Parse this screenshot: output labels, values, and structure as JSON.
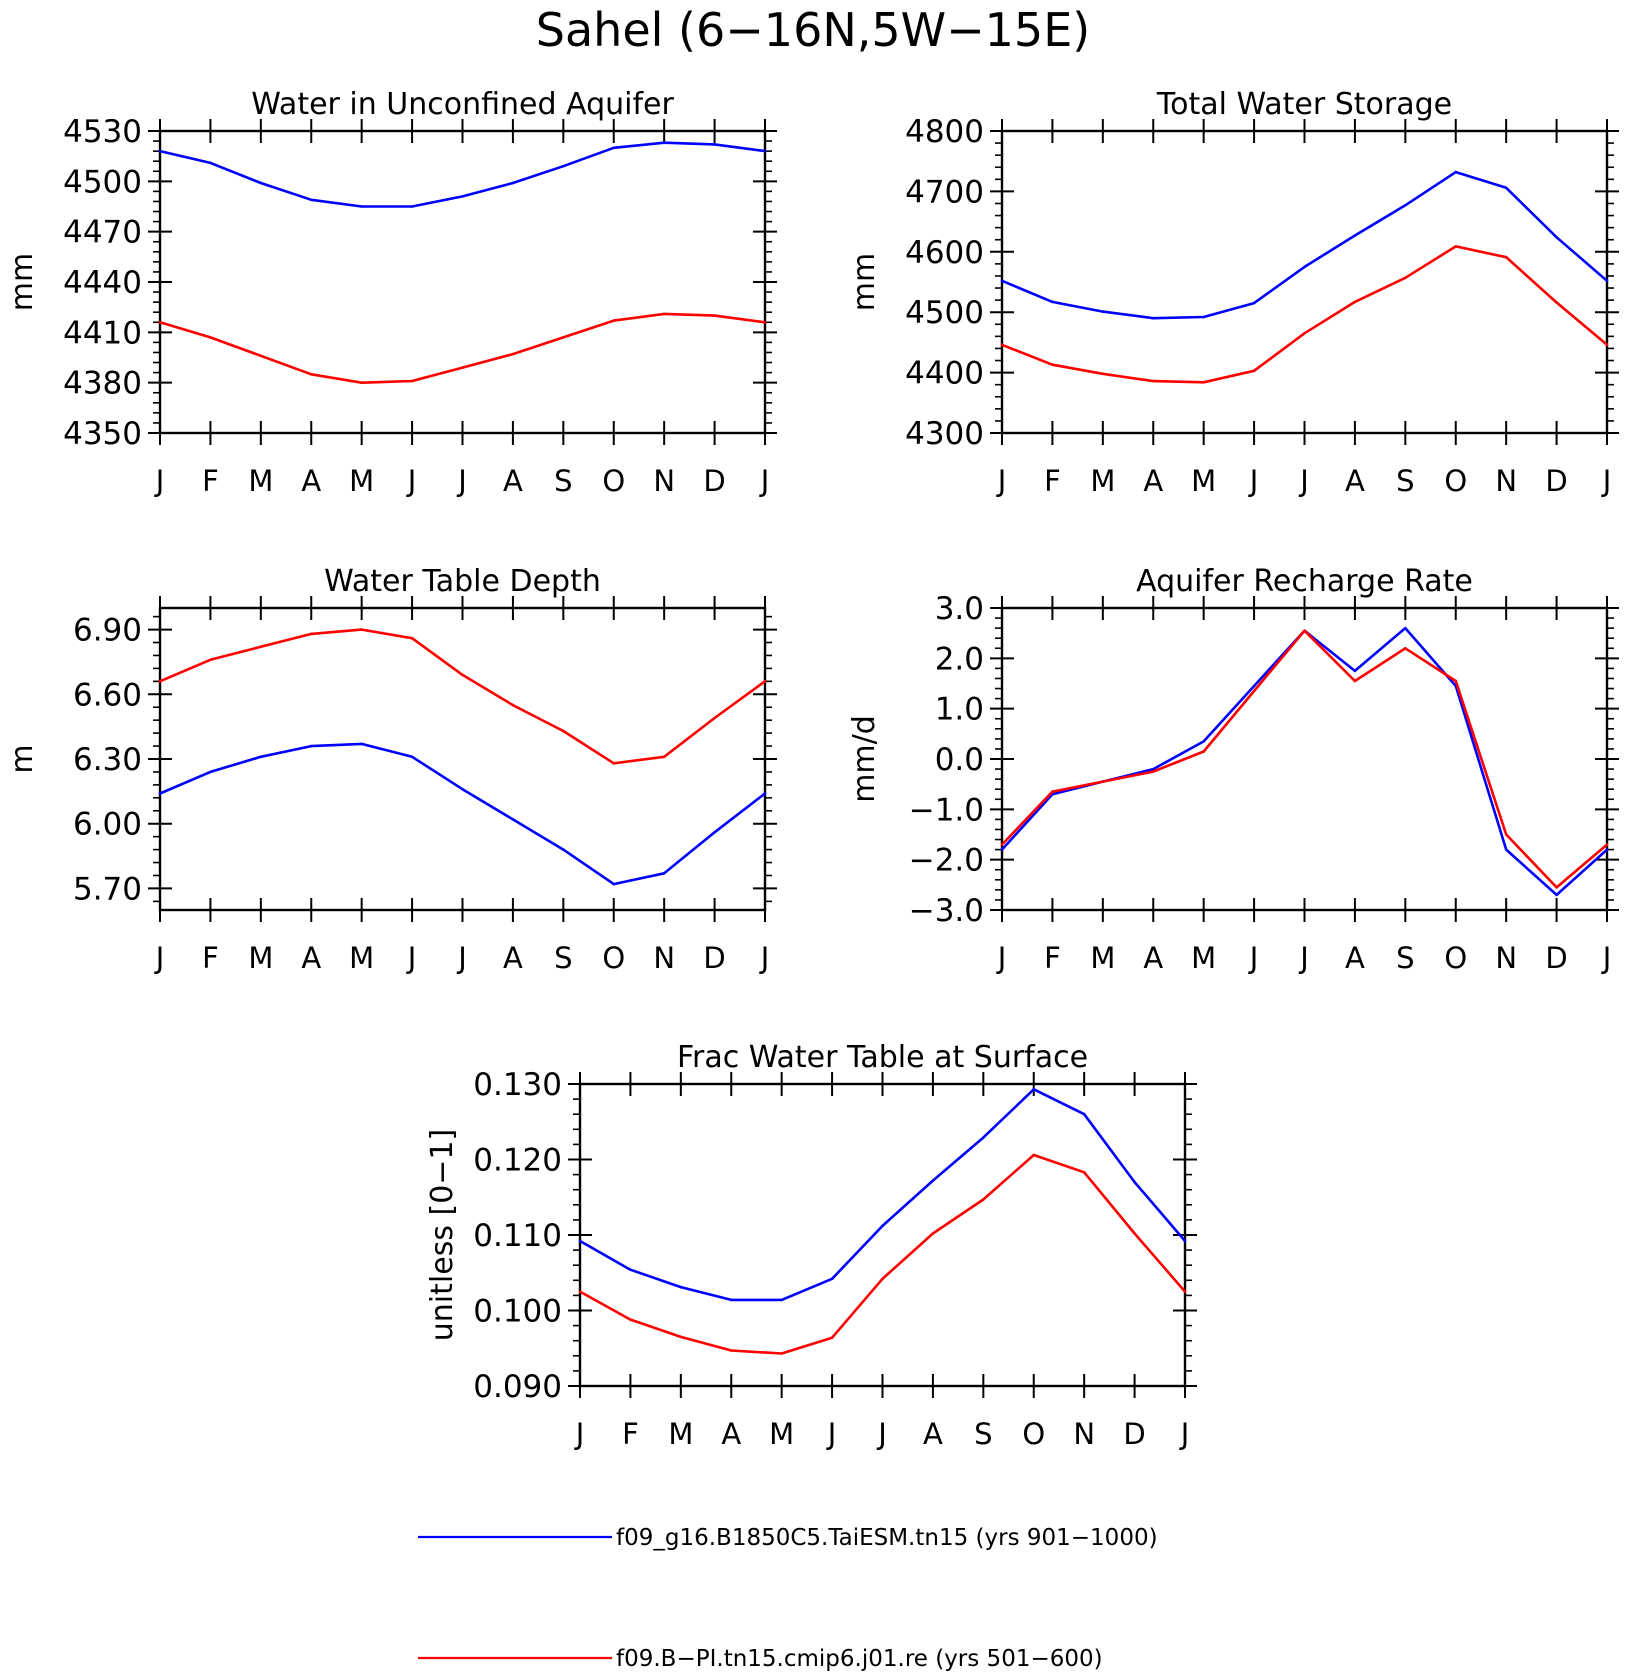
{
  "figure": {
    "title": "Sahel (6−16N,5W−15E)"
  },
  "legend": [
    {
      "label": "f09_g16.B1850C5.TaiESM.tn15 (yrs 901−1000)",
      "color": "#0000ff"
    },
    {
      "label": "f09.B−PI.tn15.cmip6.j01.re (yrs 501−600)",
      "color": "#ff0000"
    }
  ],
  "chart_data": [
    {
      "type": "line",
      "title": "Water in Unconfined Aquifer",
      "ylabel": "mm",
      "xlabel": "",
      "categories": [
        "J",
        "F",
        "M",
        "A",
        "M",
        "J",
        "J",
        "A",
        "S",
        "O",
        "N",
        "D",
        "J"
      ],
      "ylim": [
        4350,
        4530
      ],
      "yticks": [
        4350,
        4380,
        4410,
        4440,
        4470,
        4500,
        4530
      ],
      "ytick_labels": [
        "4350",
        "4380",
        "4410",
        "4440",
        "4470",
        "4500",
        "4530"
      ],
      "series": [
        {
          "color": "#0000ff",
          "values": [
            4518,
            4511,
            4499,
            4489,
            4485,
            4485,
            4491,
            4499,
            4509,
            4520,
            4523,
            4522,
            4518
          ]
        },
        {
          "color": "#ff0000",
          "values": [
            4416,
            4407,
            4396,
            4385,
            4380,
            4381,
            4389,
            4397,
            4407,
            4417,
            4421,
            4420,
            4416
          ]
        }
      ]
    },
    {
      "type": "line",
      "title": "Total Water Storage",
      "ylabel": "mm",
      "xlabel": "",
      "categories": [
        "J",
        "F",
        "M",
        "A",
        "M",
        "J",
        "J",
        "A",
        "S",
        "O",
        "N",
        "D",
        "J"
      ],
      "ylim": [
        4300,
        4800
      ],
      "yticks": [
        4300,
        4400,
        4500,
        4600,
        4700,
        4800
      ],
      "ytick_labels": [
        "4300",
        "4400",
        "4500",
        "4600",
        "4700",
        "4800"
      ],
      "series": [
        {
          "color": "#0000ff",
          "values": [
            4552,
            4517,
            4501,
            4490,
            4492,
            4515,
            4575,
            4627,
            4677,
            4732,
            4706,
            4624,
            4552
          ]
        },
        {
          "color": "#ff0000",
          "values": [
            4446,
            4413,
            4398,
            4386,
            4384,
            4403,
            4465,
            4517,
            4557,
            4609,
            4591,
            4516,
            4446
          ]
        }
      ]
    },
    {
      "type": "line",
      "title": "Water Table Depth",
      "ylabel": "m",
      "xlabel": "",
      "categories": [
        "J",
        "F",
        "M",
        "A",
        "M",
        "J",
        "J",
        "A",
        "S",
        "O",
        "N",
        "D",
        "J"
      ],
      "ylim": [
        5.6,
        7.0
      ],
      "yticks": [
        5.7,
        6.0,
        6.3,
        6.6,
        6.9
      ],
      "ytick_labels": [
        "5.70",
        "6.00",
        "6.30",
        "6.60",
        "6.90"
      ],
      "series": [
        {
          "color": "#0000ff",
          "values": [
            6.14,
            6.24,
            6.31,
            6.36,
            6.37,
            6.31,
            6.16,
            6.02,
            5.88,
            5.72,
            5.77,
            5.96,
            6.14
          ]
        },
        {
          "color": "#ff0000",
          "values": [
            6.66,
            6.76,
            6.82,
            6.88,
            6.9,
            6.86,
            6.69,
            6.55,
            6.43,
            6.28,
            6.31,
            6.49,
            6.66
          ]
        }
      ]
    },
    {
      "type": "line",
      "title": "Aquifer Recharge Rate",
      "ylabel": "mm/d",
      "xlabel": "",
      "categories": [
        "J",
        "F",
        "M",
        "A",
        "M",
        "J",
        "J",
        "A",
        "S",
        "O",
        "N",
        "D",
        "J"
      ],
      "ylim": [
        -3.0,
        3.0
      ],
      "yticks": [
        -3.0,
        -2.0,
        -1.0,
        0.0,
        1.0,
        2.0,
        3.0
      ],
      "ytick_labels": [
        "−3.0",
        "−2.0",
        "−1.0",
        "0.0",
        "1.0",
        "2.0",
        "3.0"
      ],
      "series": [
        {
          "color": "#0000ff",
          "values": [
            -1.8,
            -0.7,
            -0.45,
            -0.2,
            0.35,
            1.45,
            2.55,
            1.75,
            2.6,
            1.45,
            -1.8,
            -2.7,
            -1.8
          ]
        },
        {
          "color": "#ff0000",
          "values": [
            -1.7,
            -0.65,
            -0.45,
            -0.25,
            0.15,
            1.35,
            2.55,
            1.55,
            2.2,
            1.55,
            -1.5,
            -2.55,
            -1.7
          ]
        }
      ]
    },
    {
      "type": "line",
      "title": "Frac Water Table at Surface",
      "ylabel": "unitless [0−1]",
      "xlabel": "",
      "categories": [
        "J",
        "F",
        "M",
        "A",
        "M",
        "J",
        "J",
        "A",
        "S",
        "O",
        "N",
        "D",
        "J"
      ],
      "ylim": [
        0.09,
        0.13
      ],
      "yticks": [
        0.09,
        0.1,
        0.11,
        0.12,
        0.13
      ],
      "ytick_labels": [
        "0.090",
        "0.100",
        "0.110",
        "0.120",
        "0.130"
      ],
      "series": [
        {
          "color": "#0000ff",
          "values": [
            0.1092,
            0.1054,
            0.1031,
            0.1014,
            0.1014,
            0.1042,
            0.1112,
            0.1172,
            0.1229,
            0.1293,
            0.126,
            0.117,
            0.1092
          ]
        },
        {
          "color": "#ff0000",
          "values": [
            0.1025,
            0.0988,
            0.0965,
            0.0947,
            0.0943,
            0.0964,
            0.1042,
            0.1102,
            0.1147,
            0.1206,
            0.1183,
            0.1102,
            0.1025
          ]
        }
      ]
    }
  ]
}
